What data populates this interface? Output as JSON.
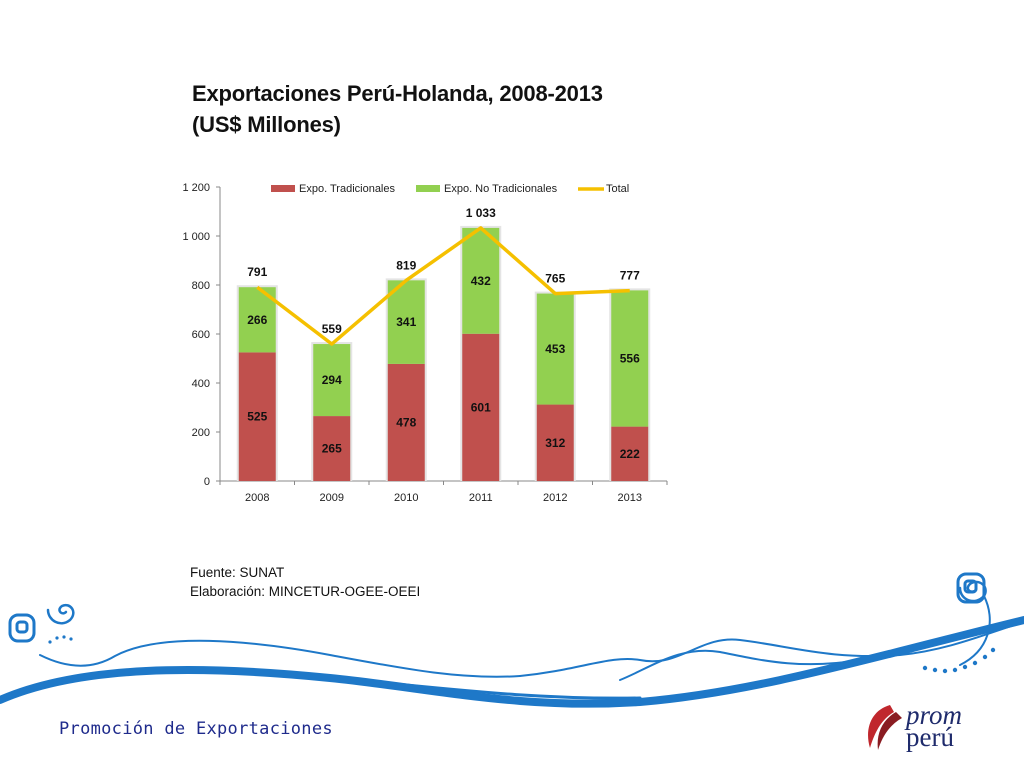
{
  "slide": {
    "title_line1": "Exportaciones Perú-Holanda, 2008-2013",
    "title_line2": "(US$ Millones)",
    "source_line1": "Fuente: SUNAT",
    "source_line2": "Elaboración: MINCETUR-OGEE-OEEI",
    "footer": "Promoción de Exportaciones",
    "logo_line1": "prom",
    "logo_line2": "perú"
  },
  "colors": {
    "tradicionales": "#c0504d",
    "no_tradicionales": "#92d050",
    "total": "#f5c000",
    "wave": "#1e78c8"
  },
  "chart_data": {
    "type": "bar",
    "stacked": true,
    "categories": [
      "2008",
      "2009",
      "2010",
      "2011",
      "2012",
      "2013"
    ],
    "series": [
      {
        "name": "Expo. Tradicionales",
        "kind": "bar",
        "values": [
          525,
          265,
          478,
          601,
          312,
          222
        ]
      },
      {
        "name": "Expo. No Tradicionales",
        "kind": "bar",
        "values": [
          266,
          294,
          341,
          432,
          453,
          556
        ]
      },
      {
        "name": "Total",
        "kind": "line",
        "values": [
          791,
          559,
          819,
          1033,
          765,
          777
        ]
      }
    ],
    "total_labels": [
      "791",
      "559",
      "819",
      "1 033",
      "765",
      "777"
    ],
    "ylim": [
      0,
      1200
    ],
    "yticks": [
      0,
      200,
      400,
      600,
      800,
      1000,
      1200
    ],
    "ytick_labels": [
      "0",
      "200",
      "400",
      "600",
      "800",
      "1 000",
      "1 200"
    ],
    "legend_position": "top",
    "grid": false
  }
}
